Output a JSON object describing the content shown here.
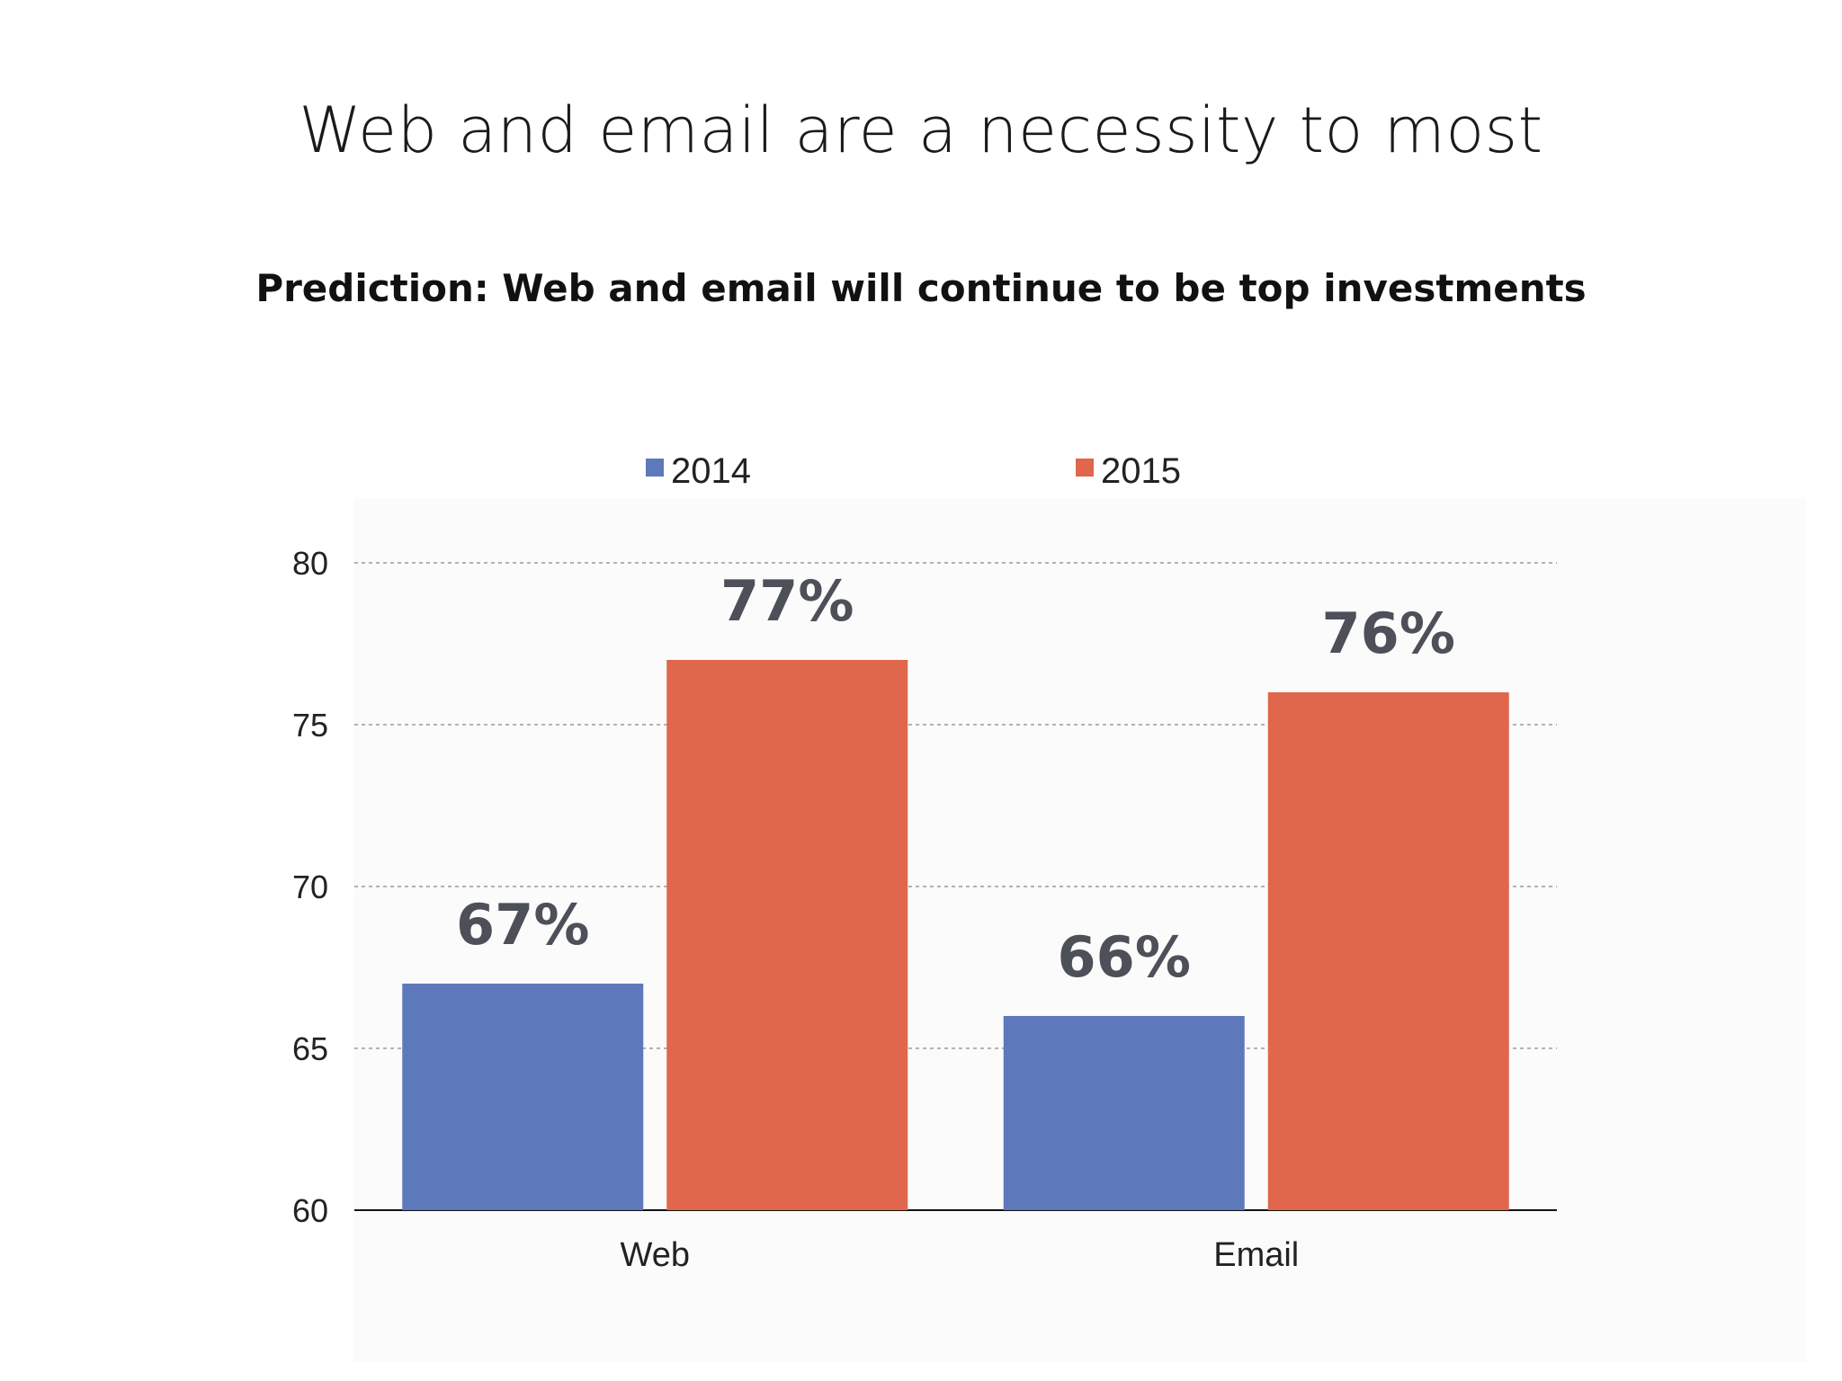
{
  "title": "Web and email are a necessity to most",
  "chart_data": {
    "type": "bar",
    "title": "Prediction: Web and email will continue to be top investments",
    "categories": [
      "Web",
      "Email"
    ],
    "series": [
      {
        "name": "2014",
        "color": "#5e79bb",
        "values": [
          67,
          66
        ],
        "labels": [
          "67%",
          "66%"
        ]
      },
      {
        "name": "2015",
        "color": "#e0664c",
        "values": [
          77,
          76
        ],
        "labels": [
          "77%",
          "76%"
        ]
      }
    ],
    "ylim": [
      60,
      80
    ],
    "yticks": [
      60,
      65,
      70,
      75,
      80
    ],
    "ytick_labels": [
      "60",
      "65",
      "70",
      "75",
      "80"
    ],
    "xlabel": "",
    "ylabel": "",
    "grid": true,
    "legend_position": "top"
  }
}
